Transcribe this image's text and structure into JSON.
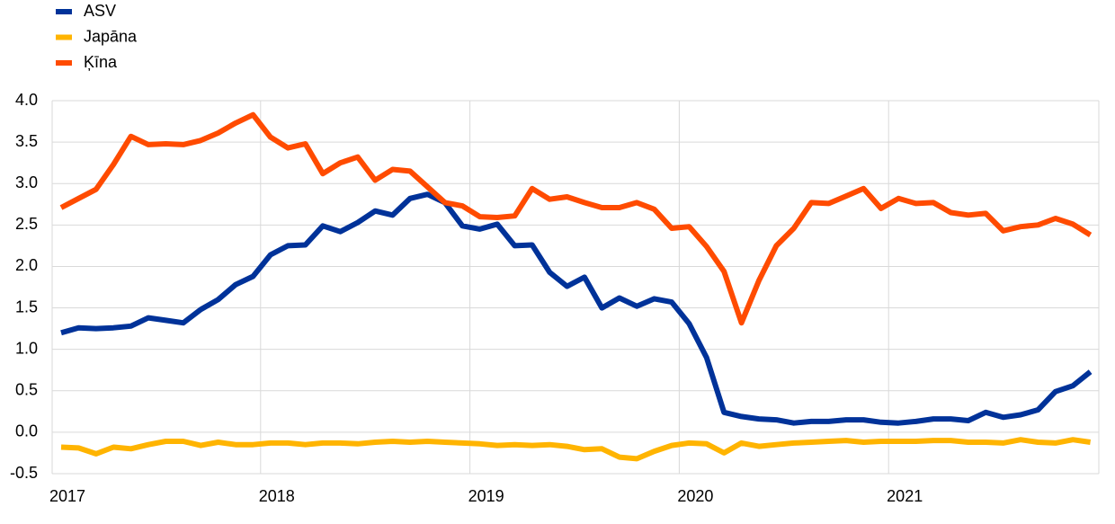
{
  "chart_data": {
    "type": "line",
    "categories": [
      "2017",
      null,
      null,
      null,
      null,
      null,
      null,
      null,
      null,
      null,
      null,
      null,
      "2018",
      null,
      null,
      null,
      null,
      null,
      null,
      null,
      null,
      null,
      null,
      null,
      "2019",
      null,
      null,
      null,
      null,
      null,
      null,
      null,
      null,
      null,
      null,
      null,
      "2020",
      null,
      null,
      null,
      null,
      null,
      null,
      null,
      null,
      null,
      null,
      null,
      "2021",
      null,
      null,
      null,
      null,
      null,
      null,
      null,
      null,
      null,
      null,
      null
    ],
    "series": [
      {
        "name": "ASV",
        "color": "#003299",
        "values": [
          1.2,
          1.26,
          1.25,
          1.26,
          1.28,
          1.38,
          1.35,
          1.32,
          1.48,
          1.6,
          1.78,
          1.88,
          2.14,
          2.25,
          2.26,
          2.49,
          2.42,
          2.53,
          2.67,
          2.62,
          2.82,
          2.87,
          2.77,
          2.49,
          2.45,
          2.51,
          2.25,
          2.26,
          1.93,
          1.76,
          1.87,
          1.5,
          1.62,
          1.52,
          1.61,
          1.57,
          1.31,
          0.9,
          0.24,
          0.19,
          0.16,
          0.15,
          0.11,
          0.13,
          0.13,
          0.15,
          0.15,
          0.12,
          0.11,
          0.13,
          0.16,
          0.16,
          0.14,
          0.24,
          0.18,
          0.21,
          0.27,
          0.49,
          0.56,
          0.73
        ]
      },
      {
        "name": "Japāna",
        "color": "#ffb400",
        "values": [
          -0.18,
          -0.19,
          -0.26,
          -0.18,
          -0.2,
          -0.15,
          -0.11,
          -0.11,
          -0.16,
          -0.12,
          -0.15,
          -0.15,
          -0.13,
          -0.13,
          -0.15,
          -0.13,
          -0.13,
          -0.14,
          -0.12,
          -0.11,
          -0.12,
          -0.11,
          -0.12,
          -0.13,
          -0.14,
          -0.16,
          -0.15,
          -0.16,
          -0.15,
          -0.17,
          -0.21,
          -0.2,
          -0.3,
          -0.32,
          -0.23,
          -0.16,
          -0.13,
          -0.14,
          -0.25,
          -0.13,
          -0.17,
          -0.15,
          -0.13,
          -0.12,
          -0.11,
          -0.1,
          -0.12,
          -0.11,
          -0.11,
          -0.11,
          -0.1,
          -0.1,
          -0.12,
          -0.12,
          -0.13,
          -0.09,
          -0.12,
          -0.13,
          -0.09,
          -0.12
        ]
      },
      {
        "name": "Ķīna",
        "color": "#ff4b00",
        "values": [
          2.71,
          2.82,
          2.93,
          3.23,
          3.57,
          3.47,
          3.48,
          3.47,
          3.52,
          3.61,
          3.73,
          3.83,
          3.56,
          3.43,
          3.48,
          3.12,
          3.25,
          3.32,
          3.04,
          3.17,
          3.15,
          2.96,
          2.77,
          2.73,
          2.6,
          2.59,
          2.61,
          2.94,
          2.81,
          2.84,
          2.77,
          2.71,
          2.71,
          2.77,
          2.69,
          2.46,
          2.48,
          2.24,
          1.94,
          1.32,
          1.83,
          2.25,
          2.46,
          2.77,
          2.76,
          2.85,
          2.94,
          2.7,
          2.82,
          2.76,
          2.77,
          2.65,
          2.62,
          2.64,
          2.43,
          2.48,
          2.5,
          2.58,
          2.51,
          2.38
        ]
      }
    ],
    "ylim": [
      -0.5,
      4.0
    ],
    "yticks": [
      {
        "value": 4.0,
        "label": "4.0"
      },
      {
        "value": 3.5,
        "label": "3.5"
      },
      {
        "value": 3.0,
        "label": "3.0"
      },
      {
        "value": 2.5,
        "label": "2.5"
      },
      {
        "value": 2.0,
        "label": "2.0"
      },
      {
        "value": 1.5,
        "label": "1.5"
      },
      {
        "value": 1.0,
        "label": "1.0"
      },
      {
        "value": 0.5,
        "label": "0.5"
      },
      {
        "value": 0.0,
        "label": "0.0"
      },
      {
        "value": -0.5,
        "label": "-0.5"
      }
    ],
    "grid": true,
    "legend": "top-left"
  }
}
